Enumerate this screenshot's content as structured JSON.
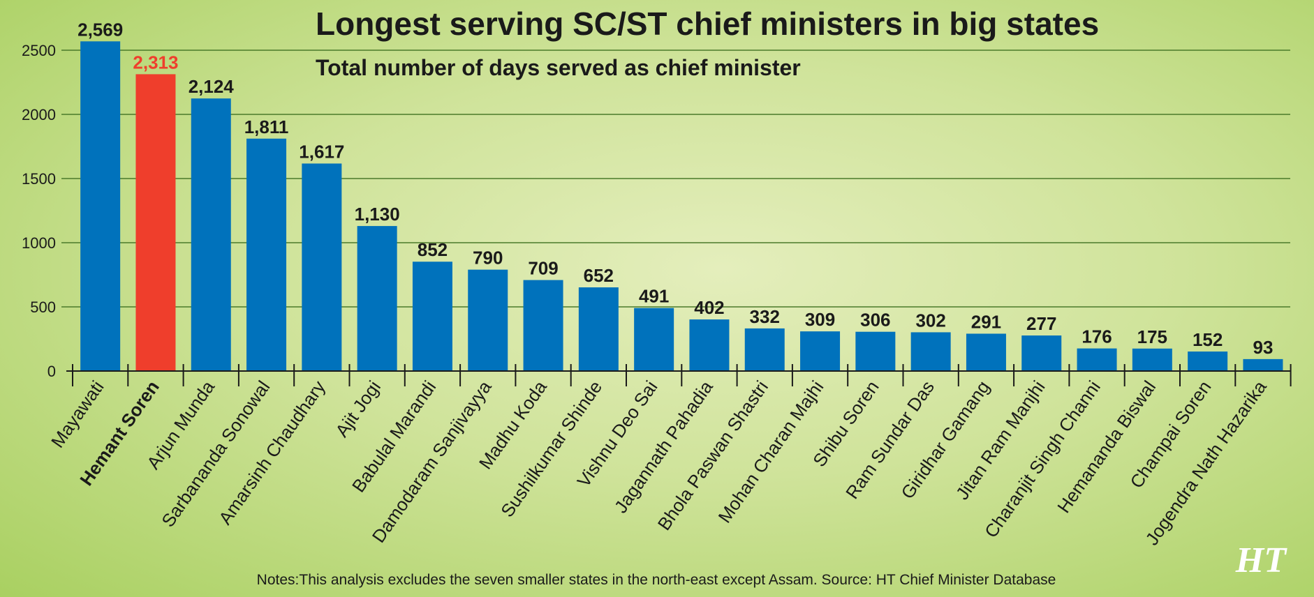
{
  "chart_data": {
    "type": "bar",
    "title": "Longest serving SC/ST chief ministers in big states",
    "subtitle": "Total number of days served as chief minister",
    "xlabel": "",
    "ylabel": "",
    "ylim": [
      0,
      2500
    ],
    "yticks": [
      "0",
      "500",
      "1000",
      "1500",
      "2000",
      "2500"
    ],
    "yticks_values": [
      0,
      500,
      1000,
      1500,
      2000,
      2500
    ],
    "grid": true,
    "categories": [
      "Mayawati",
      "Hemant Soren",
      "Arjun Munda",
      "Sarbananda Sonowal",
      "Amarsinh Chaudhary",
      "Ajit Jogi",
      "Babulal Marandi",
      "Damodaram Sanjivayya",
      "Madhu Koda",
      "Sushilkumar Shinde",
      "Vishnu Deo Sai",
      "Jagannath Pahadia",
      "Bhola Paswan Shastri",
      "Mohan Charan Majhi",
      "Shibu Soren",
      "Ram Sundar Das",
      "Giridhar Gamang",
      "Jitan Ram Manjhi",
      "Charanjit Singh Channi",
      "Hemananda Biswal",
      "Champai Soren",
      "Jogendra Nath Hazarika"
    ],
    "values": [
      2569,
      2313,
      2124,
      1811,
      1617,
      1130,
      852,
      790,
      709,
      652,
      491,
      402,
      332,
      309,
      306,
      302,
      291,
      277,
      176,
      175,
      152,
      93
    ],
    "value_labels": [
      "2,569",
      "2,313",
      "2,124",
      "1,811",
      "1,617",
      "1,130",
      "852",
      "790",
      "709",
      "652",
      "491",
      "402",
      "332",
      "309",
      "306",
      "302",
      "291",
      "277",
      "176",
      "175",
      "152",
      "93"
    ],
    "highlight_category": "Hemant Soren",
    "colors": {
      "bar": "#0072bc",
      "highlight": "#ef3e2c",
      "grid": "#4a7a2a",
      "text": "#1a1a1a"
    }
  },
  "footer": {
    "note": "Notes:This analysis excludes the seven smaller states in the north-east except Assam. Source: HT Chief Minister Database",
    "logo": "HT"
  }
}
